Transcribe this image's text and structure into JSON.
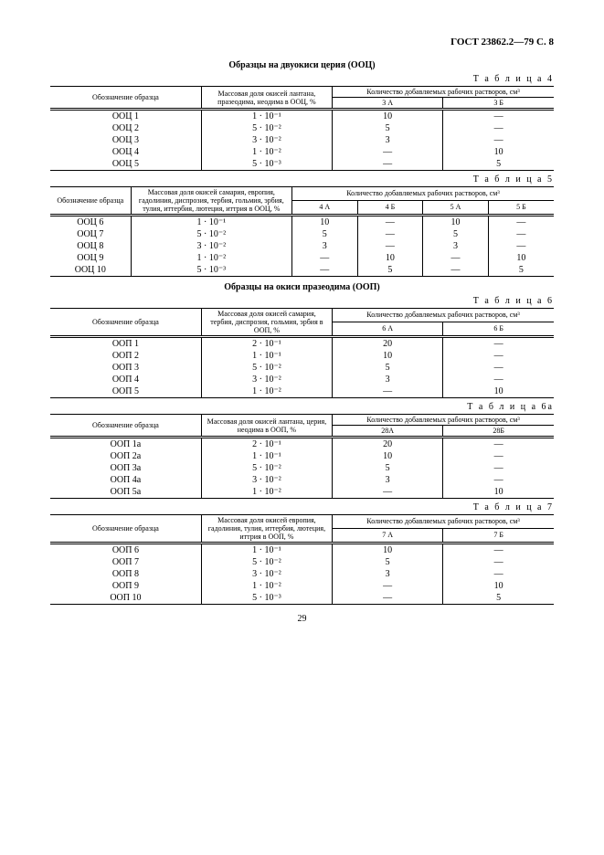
{
  "header": "ГОСТ 23862.2—79 С. 8",
  "pagenum": "29",
  "section1": "Образцы на двуокиси церия (ООЦ)",
  "section2": "Образцы на окиси празеодима (ООП)",
  "t4": {
    "label": "Т а б л и ц а   4",
    "col1": "Обозначение образца",
    "col2": "Массовая доля окисей лантана, празеодима, неодима в ООЦ, %",
    "col3": "Количество добавляемых рабочих растворов, см³",
    "sub1": "3 А",
    "sub2": "3 Б",
    "rows": [
      {
        "n": "ООЦ 1",
        "v": "1 · 10⁻¹",
        "a": "10",
        "b": "—"
      },
      {
        "n": "ООЦ 2",
        "v": "5 · 10⁻²",
        "a": "5",
        "b": "—"
      },
      {
        "n": "ООЦ 3",
        "v": "3 · 10⁻²",
        "a": "3",
        "b": "—"
      },
      {
        "n": "ООЦ 4",
        "v": "1 · 10⁻²",
        "a": "—",
        "b": "10"
      },
      {
        "n": "ООЦ 5",
        "v": "5 · 10⁻³",
        "a": "—",
        "b": "5"
      }
    ]
  },
  "t5": {
    "label": "Т а б л и ц а   5",
    "col1": "Обозначение образца",
    "col2": "Массовая доля окисей самария, европия, гадолиния, диспрозия, тербия, гольмия, эрбия, тулия, иттербия, лютеция, иттрия в ООЦ, %",
    "col3": "Количество добавляемых рабочих растворов, см³",
    "sub1": "4 А",
    "sub2": "4 Б",
    "sub3": "5 А",
    "sub4": "5 Б",
    "rows": [
      {
        "n": "ООЦ 6",
        "v": "1 · 10⁻¹",
        "a": "10",
        "b": "—",
        "c": "10",
        "d": "—"
      },
      {
        "n": "ООЦ 7",
        "v": "5 · 10⁻²",
        "a": "5",
        "b": "—",
        "c": "5",
        "d": "—"
      },
      {
        "n": "ООЦ 8",
        "v": "3 · 10⁻²",
        "a": "3",
        "b": "—",
        "c": "3",
        "d": "—"
      },
      {
        "n": "ООЦ 9",
        "v": "1 · 10⁻²",
        "a": "—",
        "b": "10",
        "c": "—",
        "d": "10"
      },
      {
        "n": "ООЦ 10",
        "v": "5 · 10⁻³",
        "a": "—",
        "b": "5",
        "c": "—",
        "d": "5"
      }
    ]
  },
  "t6": {
    "label": "Т а б л и ц а   6",
    "col1": "Обозначение образца",
    "col2": "Массовая доля окисей самария, тербия, диспрозия, гольмия, эрбия в ООП, %",
    "col3": "Количество добавляемых рабочих растворов, см³",
    "sub1": "6 А",
    "sub2": "6 Б",
    "rows": [
      {
        "n": "ООП 1",
        "v": "2 · 10⁻¹",
        "a": "20",
        "b": "—"
      },
      {
        "n": "ООП 2",
        "v": "1 · 10⁻¹",
        "a": "10",
        "b": "—"
      },
      {
        "n": "ООП 3",
        "v": "5 · 10⁻²",
        "a": "5",
        "b": "—"
      },
      {
        "n": "ООП 4",
        "v": "3 · 10⁻²",
        "a": "3",
        "b": "—"
      },
      {
        "n": "ООП 5",
        "v": "1 · 10⁻²",
        "a": "—",
        "b": "10"
      }
    ]
  },
  "t6a": {
    "label": "Т а б л и ц а   6а",
    "col1": "Обозначение образца",
    "col2": "Массовая доля окисей лантана, церия, неодима в ООП, %",
    "col3": "Количество добавляемых рабочих растворов, см³",
    "sub1": "28А",
    "sub2": "28Б",
    "rows": [
      {
        "n": "ООП 1а",
        "v": "2 · 10⁻¹",
        "a": "20",
        "b": "—"
      },
      {
        "n": "ООП 2а",
        "v": "1 · 10⁻¹",
        "a": "10",
        "b": "—"
      },
      {
        "n": "ООП 3а",
        "v": "5 · 10⁻²",
        "a": "5",
        "b": "—"
      },
      {
        "n": "ООП 4а",
        "v": "3 · 10⁻²",
        "a": "3",
        "b": "—"
      },
      {
        "n": "ООП 5а",
        "v": "1 · 10⁻²",
        "a": "—",
        "b": "10"
      }
    ]
  },
  "t7": {
    "label": "Т а б л и ц а   7",
    "col1": "Обозначение образца",
    "col2": "Массовая доля окисей европия, гадолиния, тулия, иттербия, лютеция, иттрия в ООП, %",
    "col3": "Количество добавляемых рабочих растворов, см³",
    "sub1": "7 А",
    "sub2": "7 Б",
    "rows": [
      {
        "n": "ООП 6",
        "v": "1 · 10⁻¹",
        "a": "10",
        "b": "—"
      },
      {
        "n": "ООП 7",
        "v": "5 · 10⁻²",
        "a": "5",
        "b": "—"
      },
      {
        "n": "ООП 8",
        "v": "3 · 10⁻²",
        "a": "3",
        "b": "—"
      },
      {
        "n": "ООП 9",
        "v": "1 · 10⁻²",
        "a": "—",
        "b": "10"
      },
      {
        "n": "ООП 10",
        "v": "5 · 10⁻³",
        "a": "—",
        "b": "5"
      }
    ]
  }
}
